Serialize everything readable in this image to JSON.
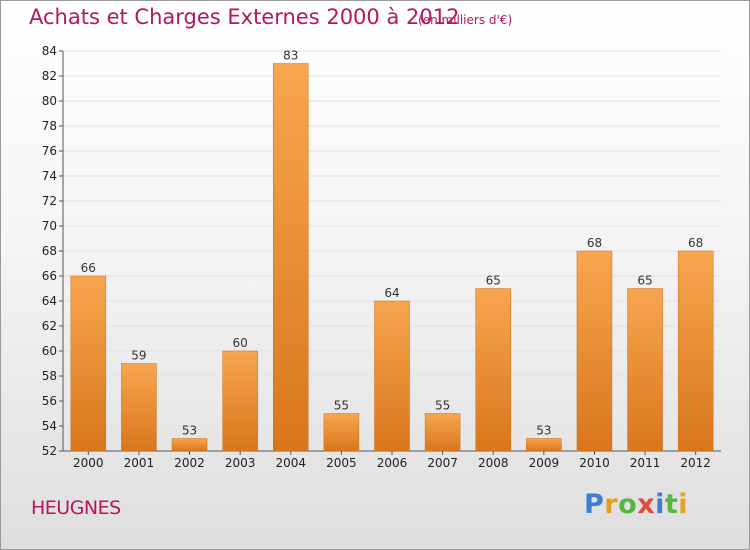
{
  "header": {
    "title": "Achats et Charges Externes 2000 à 2012",
    "subtitle": "(en milliers d'€)"
  },
  "footer": {
    "commune": "HEUGNES",
    "logo": "Proxiti"
  },
  "colors": {
    "accent": "#b5175e",
    "bar_top": "#f7a64f",
    "bar_bottom": "#d9761c"
  },
  "chart_data": {
    "type": "bar",
    "categories": [
      "2000",
      "2001",
      "2002",
      "2003",
      "2004",
      "2005",
      "2006",
      "2007",
      "2008",
      "2009",
      "2010",
      "2011",
      "2012"
    ],
    "values": [
      66,
      59,
      53,
      60,
      83,
      55,
      64,
      55,
      65,
      53,
      68,
      65,
      68
    ],
    "ylim": [
      52,
      84
    ],
    "yticks": [
      52,
      54,
      56,
      58,
      60,
      62,
      64,
      66,
      68,
      70,
      72,
      74,
      76,
      78,
      80,
      82,
      84
    ],
    "grid": true,
    "title": "Achats et Charges Externes 2000 à 2012",
    "subtitle": "(en milliers d'€)",
    "xlabel": "",
    "ylabel": ""
  }
}
